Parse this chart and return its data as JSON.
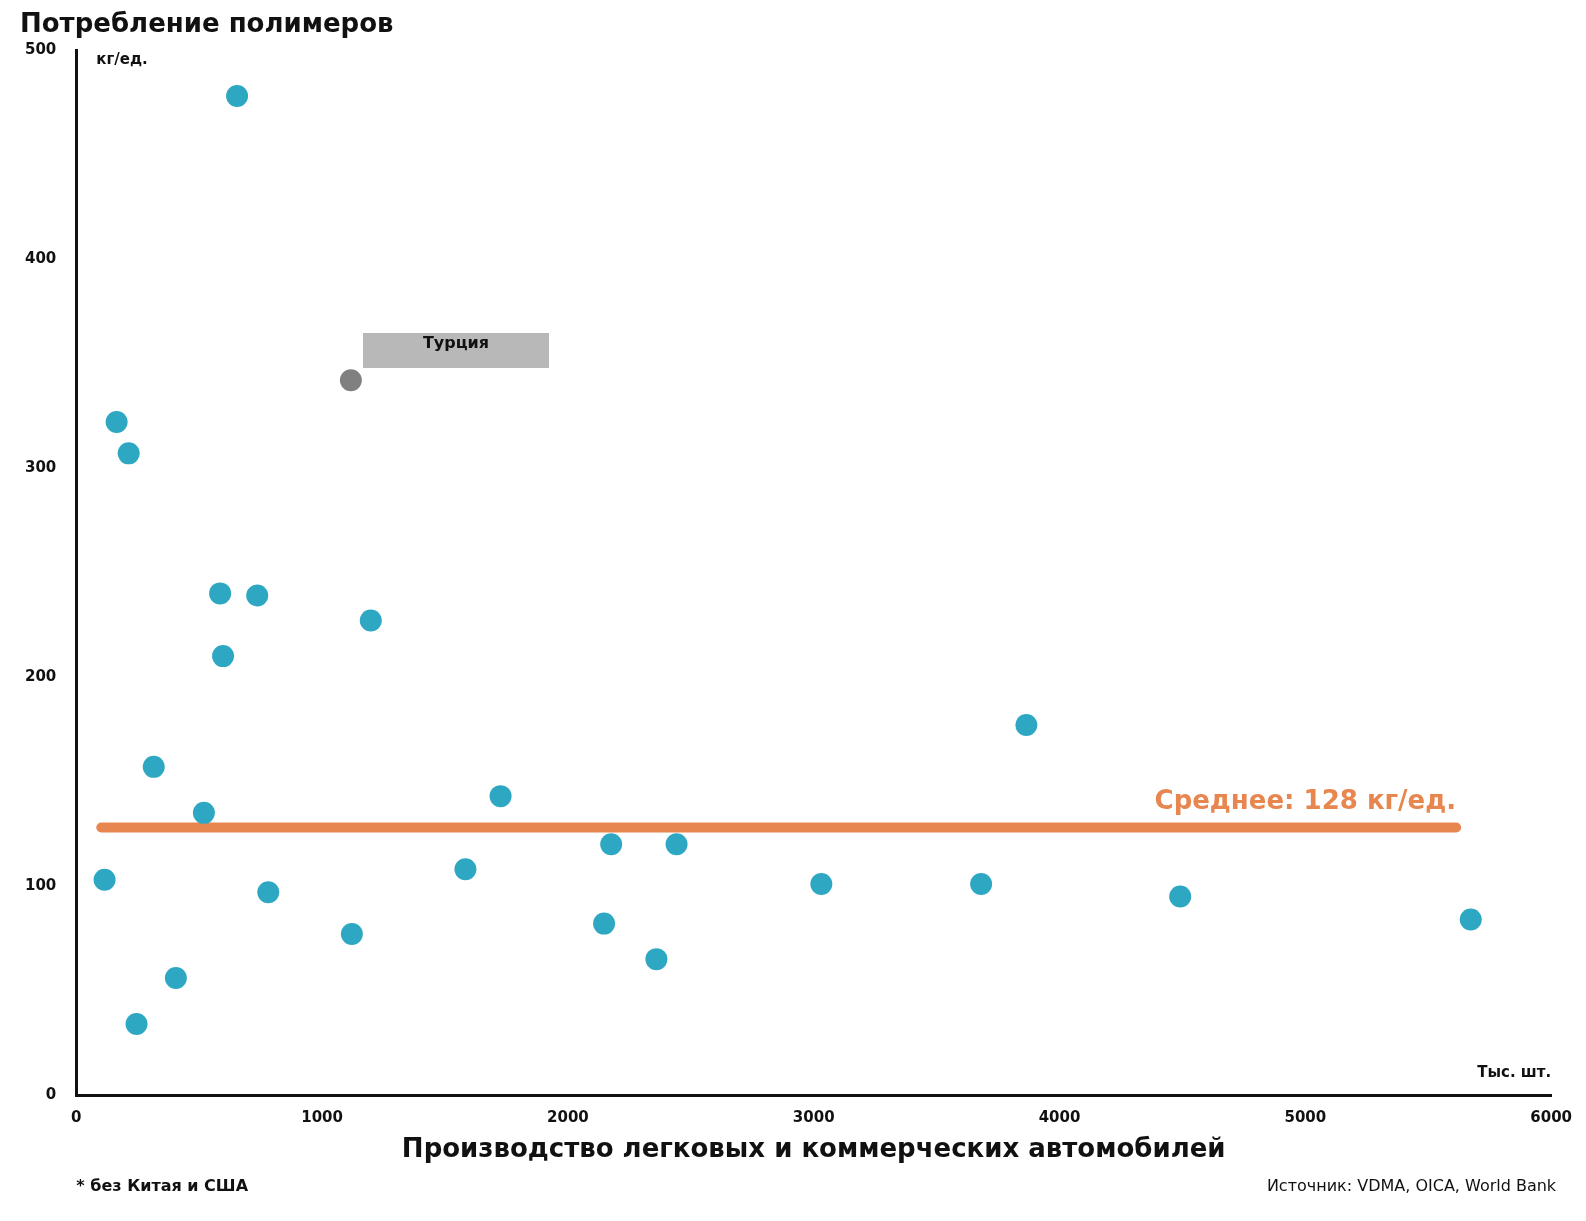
{
  "chart_data": {
    "type": "scatter",
    "title": "Потребление полимеров",
    "xlabel": "Производство легковых и коммерческих автомобилей",
    "ylabel": "кг/ед.",
    "x2label": "Тыс. шт.",
    "x": [
      115,
      164,
      213,
      245,
      315,
      405,
      519,
      585,
      597,
      654,
      736,
      781,
      1117,
      1121,
      1198,
      1583,
      1726,
      2147,
      2176,
      2360,
      2442,
      3031,
      3681,
      3865,
      4491,
      5673
    ],
    "values": [
      103,
      322,
      307,
      34,
      157,
      56,
      135,
      240,
      210,
      478,
      239,
      97,
      342,
      77,
      227,
      108,
      143,
      82,
      120,
      65,
      120,
      101,
      101,
      177,
      95,
      84
    ],
    "colors": [
      "#2ea8c2",
      "#2ea8c2",
      "#2ea8c2",
      "#2ea8c2",
      "#2ea8c2",
      "#2ea8c2",
      "#2ea8c2",
      "#2ea8c2",
      "#2ea8c2",
      "#2ea8c2",
      "#2ea8c2",
      "#2ea8c2",
      "#808080",
      "#2ea8c2",
      "#2ea8c2",
      "#2ea8c2",
      "#2ea8c2",
      "#2ea8c2",
      "#2ea8c2",
      "#2ea8c2",
      "#2ea8c2",
      "#2ea8c2",
      "#2ea8c2",
      "#2ea8c2",
      "#2ea8c2",
      "#2ea8c2"
    ],
    "marker": "circle",
    "xlim": [
      0,
      6000
    ],
    "xticks": [
      0,
      1000,
      2000,
      3000,
      4000,
      5000,
      6000
    ],
    "ylim": [
      0,
      500
    ],
    "yticks": [
      0,
      100,
      200,
      300,
      400,
      500
    ],
    "grid": false,
    "legend": false,
    "ref_lines": [
      {
        "axis": "y",
        "value": 128,
        "label": "Среднее: 128 кг/ед.",
        "color": "#e8864f"
      }
    ],
    "annotations": [
      "Турция",
      "* без Китая и США",
      "Источник: VDMA, OICA, World Bank"
    ]
  }
}
